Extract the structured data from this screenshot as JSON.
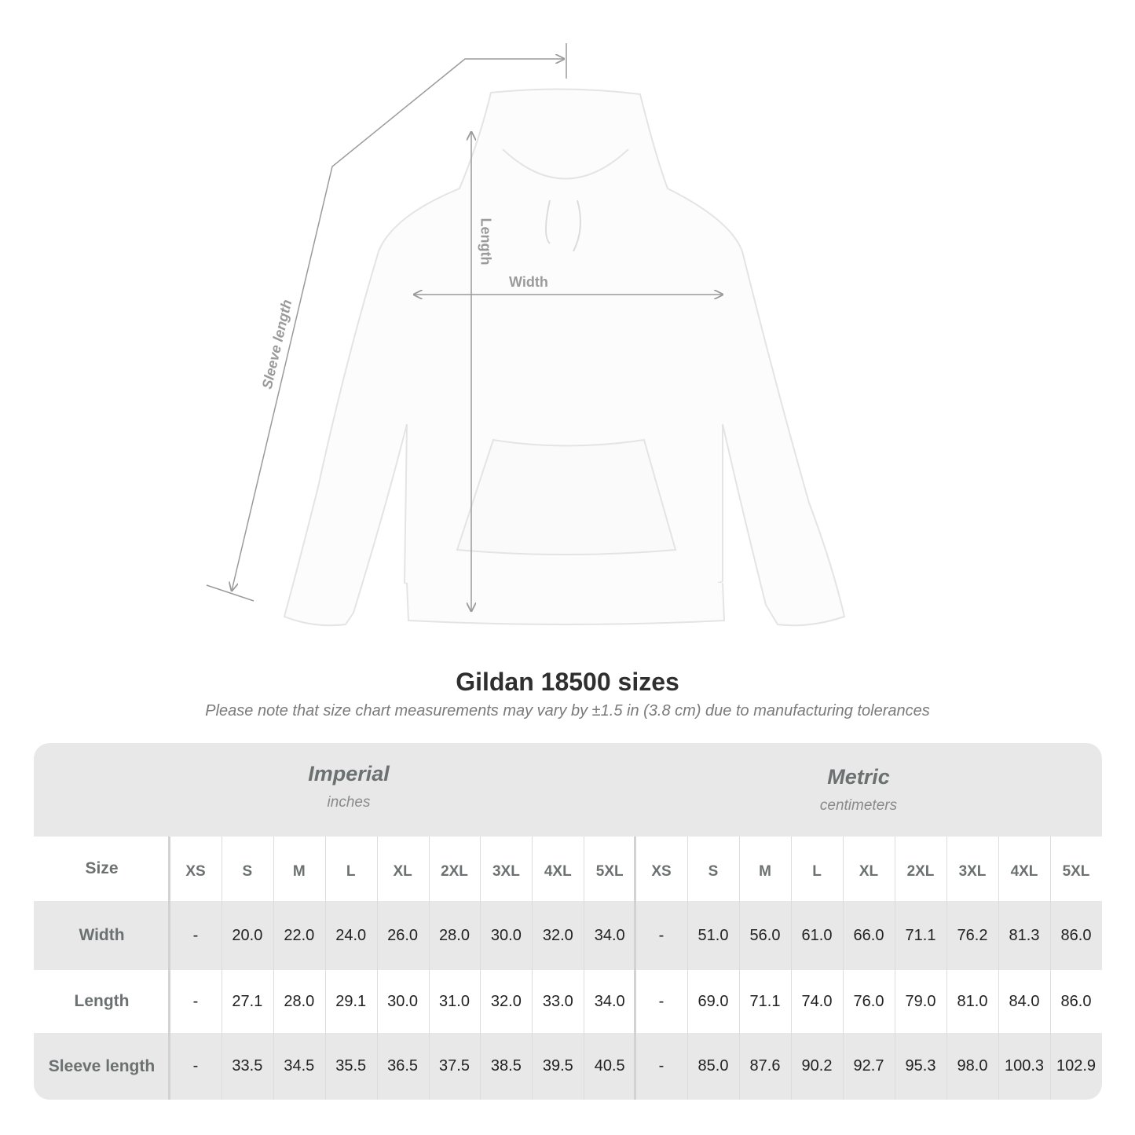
{
  "illustration": {
    "product": "hoodie",
    "garment_color": "#ffffff",
    "measure_line_color": "#9a9a9a",
    "labels": {
      "length": "Length",
      "width": "Width",
      "sleeve": "Sleeve length"
    }
  },
  "title": "Gildan 18500 sizes",
  "subtitle": "Please note that size chart measurements may vary by ±1.5 in (3.8 cm) due to manufacturing tolerances",
  "table": {
    "imperial": {
      "name": "Imperial",
      "unit": "inches"
    },
    "metric": {
      "name": "Metric",
      "unit": "centimeters"
    },
    "size_label": "Size",
    "sizes": [
      "XS",
      "S",
      "M",
      "L",
      "XL",
      "2XL",
      "3XL",
      "4XL",
      "5XL"
    ],
    "rows": [
      {
        "label": "Width",
        "imperial": [
          "-",
          "20.0",
          "22.0",
          "24.0",
          "26.0",
          "28.0",
          "30.0",
          "32.0",
          "34.0"
        ],
        "metric": [
          "-",
          "51.0",
          "56.0",
          "61.0",
          "66.0",
          "71.1",
          "76.2",
          "81.3",
          "86.0"
        ]
      },
      {
        "label": "Length",
        "imperial": [
          "-",
          "27.1",
          "28.0",
          "29.1",
          "30.0",
          "31.0",
          "32.0",
          "33.0",
          "34.0"
        ],
        "metric": [
          "-",
          "69.0",
          "71.1",
          "74.0",
          "76.0",
          "79.0",
          "81.0",
          "84.0",
          "86.0"
        ]
      },
      {
        "label": "Sleeve length",
        "imperial": [
          "-",
          "33.5",
          "34.5",
          "35.5",
          "36.5",
          "37.5",
          "38.5",
          "39.5",
          "40.5"
        ],
        "metric": [
          "-",
          "85.0",
          "87.6",
          "90.2",
          "92.7",
          "95.3",
          "98.0",
          "100.3",
          "102.9"
        ]
      }
    ],
    "band_color": "#e8e8e8"
  }
}
